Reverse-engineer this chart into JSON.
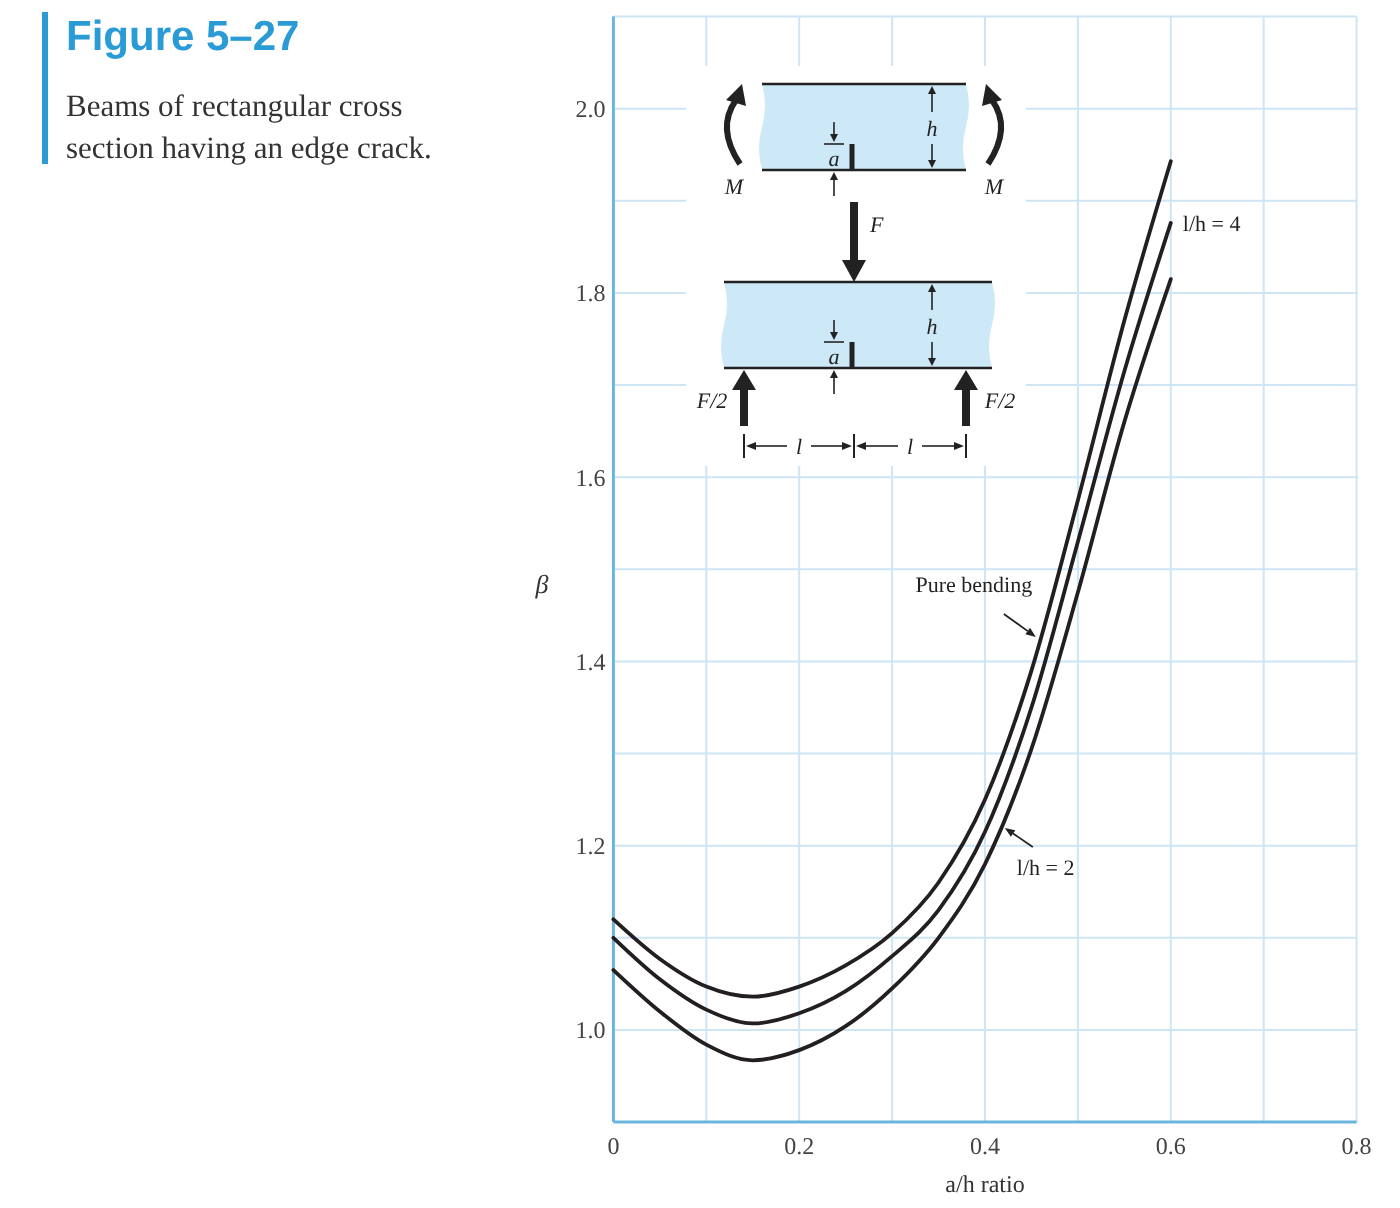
{
  "chart_data": {
    "type": "line",
    "title": "Figure 5–27",
    "subtitle": "Beams of rectangular cross section having an edge crack.",
    "xlabel": "a/h ratio",
    "ylabel": "β",
    "xlim": [
      0,
      0.8
    ],
    "xticks": [
      0,
      {
        "value": 0.1,
        "label": null
      },
      0.2,
      {
        "value": 0.3,
        "label": null
      },
      0.4,
      {
        "value": 0.5,
        "label": null
      },
      0.6,
      {
        "value": 0.7,
        "label": null
      },
      0.8
    ],
    "ylim": [
      0.9,
      2.1
    ],
    "yticks": [
      {
        "value": 1,
        "label": "1.0"
      },
      {
        "value": 1.1,
        "label": null
      },
      1.2,
      {
        "value": 1.3,
        "label": null
      },
      1.4,
      {
        "value": 1.5,
        "label": null
      },
      1.6,
      {
        "value": 1.7,
        "label": null
      },
      1.8,
      {
        "value": 1.9,
        "label": null
      },
      {
        "value": 2,
        "label": "2.0"
      },
      {
        "value": 2.1,
        "label": null
      }
    ],
    "grid": true,
    "x": [
      0,
      0.05,
      0.1,
      0.15,
      0.2,
      0.25,
      0.3,
      0.35,
      0.4,
      0.45,
      0.5,
      0.55,
      0.6
    ],
    "series": [
      {
        "name": "Pure bending",
        "color": "#231f20",
        "values": [
          1.12,
          1.077,
          1.047,
          1.036,
          1.047,
          1.07,
          1.105,
          1.16,
          1.25,
          1.39,
          1.575,
          1.77,
          1.943
        ]
      },
      {
        "name": "l/h = 4",
        "color": "#231f20",
        "values": [
          1.1,
          1.055,
          1.022,
          1.007,
          1.018,
          1.042,
          1.08,
          1.13,
          1.215,
          1.35,
          1.53,
          1.715,
          1.876
        ]
      },
      {
        "name": "l/h = 2",
        "color": "#231f20",
        "values": [
          1.065,
          1.02,
          0.984,
          0.967,
          0.978,
          1.004,
          1.045,
          1.1,
          1.18,
          1.305,
          1.475,
          1.66,
          1.815
        ]
      }
    ],
    "annotations": [
      "M",
      "M",
      "a",
      "h",
      "F",
      "a",
      "h",
      "F/2",
      "F/2",
      "l",
      "l"
    ]
  }
}
